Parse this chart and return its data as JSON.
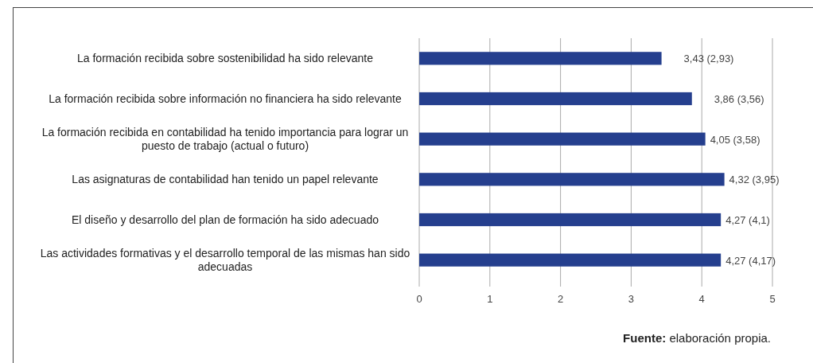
{
  "chart_data": {
    "type": "bar",
    "orientation": "horizontal",
    "categories": [
      "La formación recibida sobre sostenibilidad ha sido relevante",
      "La formación recibida sobre información no financiera ha sido relevante",
      "La formación recibida en contabilidad ha tenido importancia para lograr un puesto de trabajo (actual o futuro)",
      "Las asignaturas de contabilidad han tenido un papel relevante",
      "El diseño y desarrollo del plan de formación ha sido adecuado",
      "Las actividades formativas y el desarrollo temporal de las mismas han sido adecuadas"
    ],
    "values": [
      3.43,
      3.86,
      4.05,
      4.32,
      4.27,
      4.27
    ],
    "value_labels": [
      "3,43 (2,93)",
      "3,86 (3,56)",
      "4,05 (3,58)",
      "4,32 (3,95)",
      "4,27 (4,1)",
      "4,27 (4,17)"
    ],
    "color": "#253f8e",
    "xlim": [
      0,
      5
    ],
    "xticks": [
      0,
      1,
      2,
      3,
      4,
      5
    ],
    "grid": "x",
    "annotations": [
      "Fuente: elaboración propia."
    ]
  }
}
